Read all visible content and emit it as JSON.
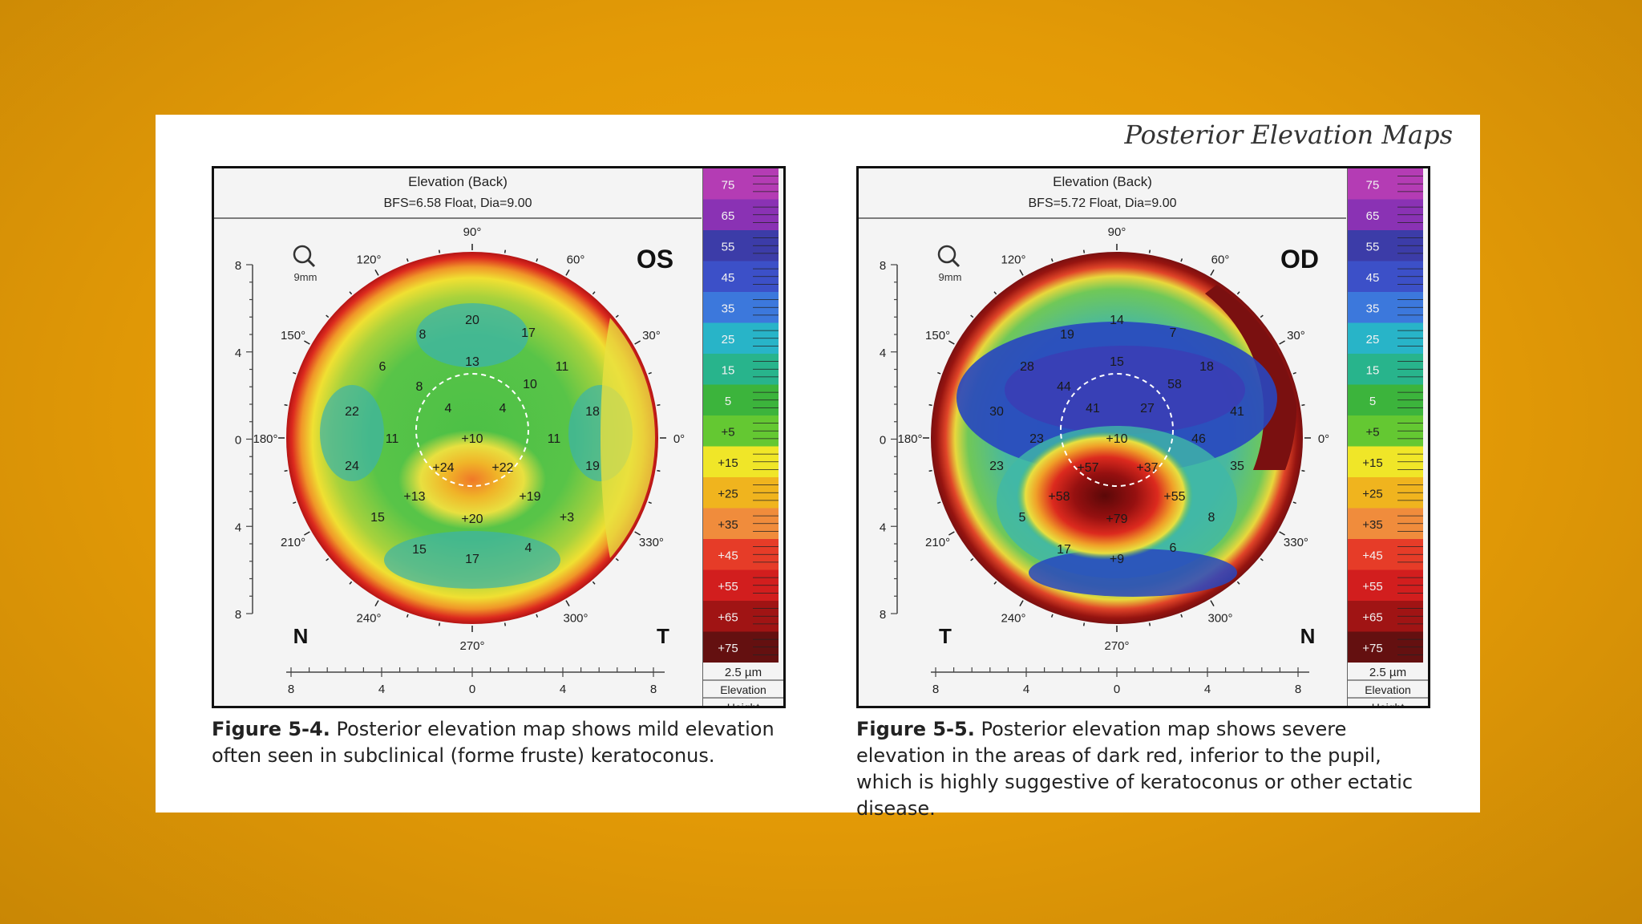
{
  "running_head": "Posterior Elevation Maps",
  "figures": [
    {
      "header_title": "Elevation (Back)",
      "header_sub": "BFS=6.58 Float, Dia=9.00",
      "eye": "OS",
      "left_letter": "N",
      "right_letter": "T",
      "zoom_label": "9mm",
      "caption_label": "Figure 5-4.",
      "caption_text": " Posterior elevation map shows mild elevation often seen in subclinical (forme fruste) keratoconus."
    },
    {
      "header_title": "Elevation (Back)",
      "header_sub": "BFS=5.72 Float, Dia=9.00",
      "eye": "OD",
      "left_letter": "T",
      "right_letter": "N",
      "zoom_label": "9mm",
      "caption_label": "Figure 5-5.",
      "caption_text": " Posterior elevation map shows severe elevation in the areas of dark red, inferior to the pupil, which is highly suggestive of keratoconus or other ectatic disease."
    }
  ],
  "angle_labels": {
    "a90": "90°",
    "a60": "60°",
    "a30": "30°",
    "a0": "0°",
    "a330": "330°",
    "a300": "300°",
    "a270": "270°",
    "a240": "240°",
    "a210": "210°",
    "a180": "180°",
    "a150": "150°",
    "a120": "120°"
  },
  "axis_ticks": {
    "y": [
      "8",
      "4",
      "0",
      "4",
      "8"
    ],
    "x": [
      "8",
      "4",
      "0",
      "4",
      "8"
    ]
  },
  "scale": {
    "labels": [
      "75",
      "65",
      "55",
      "45",
      "35",
      "25",
      "15",
      "5",
      "+5",
      "+15",
      "+25",
      "+35",
      "+45",
      "+55",
      "+65",
      "+75"
    ],
    "colors": [
      "#b43cb4",
      "#8a32b4",
      "#3c3ca8",
      "#3c50c8",
      "#3c78dc",
      "#28b4c8",
      "#28b48c",
      "#3cb43c",
      "#64c832",
      "#f0e628",
      "#f0b41e",
      "#f08c3c",
      "#e63c28",
      "#d21e1e",
      "#a01414",
      "#641010"
    ],
    "unit": "2.5 µm",
    "footer1": "Elevation",
    "footer2": "Height"
  },
  "values_fig1": [
    "20",
    "17",
    "8",
    "6",
    "13",
    "11",
    "8",
    "10",
    "4",
    "4",
    "22",
    "18",
    "11",
    "+10",
    "11",
    "24",
    "+24",
    "+22",
    "19",
    "+13",
    "+19",
    "15",
    "+20",
    "+3",
    "15",
    "17",
    "4"
  ],
  "values_fig2": [
    "14",
    "7",
    "19",
    "28",
    "15",
    "18",
    "44",
    "58",
    "41",
    "27",
    "30",
    "41",
    "23",
    "+10",
    "46",
    "23",
    "+57",
    "+37",
    "35",
    "+58",
    "+55",
    "5",
    "+79",
    "8",
    "17",
    "+9",
    "6"
  ]
}
